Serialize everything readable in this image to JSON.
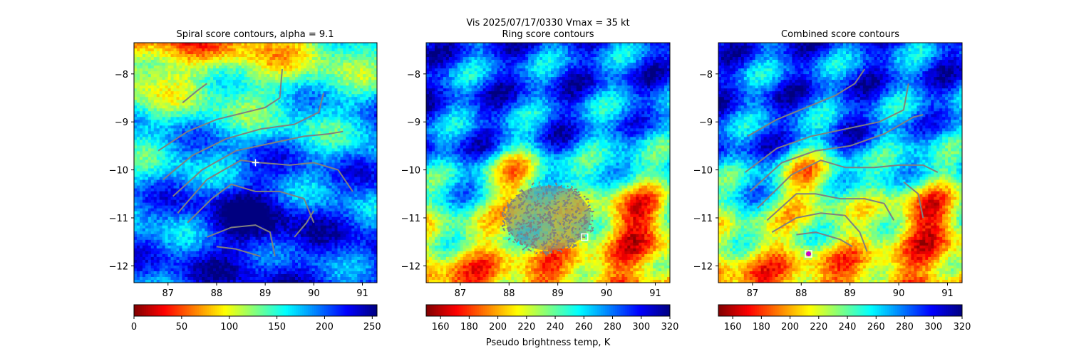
{
  "figure": {
    "suptitle_line1": "Vis  2025/07/17/0330    Vmax = 35 kt",
    "colorbar_label": "Pseudo brightness temp, K"
  },
  "colors": {
    "contour": "#808080",
    "marker": "#ffffff",
    "center_marker": "#cc00cc"
  },
  "chart_data": [
    {
      "type": "heatmap",
      "title": "Spiral score contours, alpha =  9.1",
      "xlim": [
        86.3,
        91.3
      ],
      "ylim": [
        -12.35,
        -7.35
      ],
      "xticks": [
        "87",
        "88",
        "89",
        "90",
        "91"
      ],
      "yticks": [
        "−8",
        "−9",
        "−10",
        "−11",
        "−12"
      ],
      "xtick_values": [
        87,
        88,
        89,
        90,
        91
      ],
      "ytick_values": [
        -8,
        -9,
        -10,
        -11,
        -12
      ],
      "colormap": "jet_r",
      "colorbar": {
        "range": [
          0,
          255
        ],
        "ticks": [
          "0",
          "50",
          "100",
          "150",
          "200",
          "250"
        ],
        "tick_values": [
          0,
          50,
          100,
          150,
          200,
          250
        ]
      },
      "spiral_contours": [
        [
          [
            86.8,
            -9.6
          ],
          [
            87.4,
            -9.2
          ],
          [
            88.0,
            -8.95
          ],
          [
            88.6,
            -8.8
          ],
          [
            89.0,
            -8.7
          ],
          [
            89.3,
            -8.5
          ],
          [
            89.35,
            -7.9
          ]
        ],
        [
          [
            86.9,
            -10.2
          ],
          [
            87.5,
            -9.7
          ],
          [
            88.2,
            -9.35
          ],
          [
            88.9,
            -9.15
          ],
          [
            89.6,
            -9.05
          ],
          [
            90.1,
            -8.8
          ],
          [
            90.2,
            -8.4
          ]
        ],
        [
          [
            87.1,
            -10.55
          ],
          [
            87.7,
            -10.0
          ],
          [
            88.4,
            -9.6
          ],
          [
            89.1,
            -9.45
          ],
          [
            89.8,
            -9.3
          ],
          [
            90.3,
            -9.25
          ],
          [
            90.6,
            -9.2
          ]
        ],
        [
          [
            87.2,
            -10.9
          ],
          [
            87.8,
            -10.2
          ],
          [
            88.5,
            -9.8
          ],
          [
            88.9,
            -9.85
          ],
          [
            89.5,
            -9.9
          ],
          [
            90.0,
            -9.85
          ],
          [
            90.5,
            -10.0
          ],
          [
            90.8,
            -10.45
          ]
        ],
        [
          [
            87.4,
            -11.1
          ],
          [
            87.9,
            -10.6
          ],
          [
            88.3,
            -10.3
          ],
          [
            88.8,
            -10.45
          ],
          [
            89.3,
            -10.45
          ],
          [
            89.8,
            -10.6
          ],
          [
            90.0,
            -11.1
          ]
        ],
        [
          [
            87.8,
            -11.4
          ],
          [
            88.3,
            -11.2
          ],
          [
            88.8,
            -11.15
          ],
          [
            89.1,
            -11.3
          ],
          [
            89.2,
            -11.8
          ]
        ],
        [
          [
            88.0,
            -11.6
          ],
          [
            88.4,
            -11.65
          ],
          [
            88.9,
            -11.8
          ]
        ],
        [
          [
            87.3,
            -8.6
          ],
          [
            87.6,
            -8.35
          ],
          [
            87.8,
            -8.2
          ]
        ],
        [
          [
            89.6,
            -11.4
          ],
          [
            89.85,
            -11.1
          ],
          [
            90.0,
            -10.85
          ]
        ]
      ],
      "markers": [
        {
          "kind": "plus",
          "x": 88.8,
          "y": -9.85
        }
      ]
    },
    {
      "type": "heatmap",
      "title": "Ring score contours",
      "xlim": [
        86.3,
        91.3
      ],
      "ylim": [
        -12.35,
        -7.35
      ],
      "xticks": [
        "87",
        "88",
        "89",
        "90",
        "91"
      ],
      "yticks": [
        "−8",
        "−9",
        "−10",
        "−11",
        "−12"
      ],
      "xtick_values": [
        87,
        88,
        89,
        90,
        91
      ],
      "ytick_values": [
        -8,
        -9,
        -10,
        -11,
        -12
      ],
      "colormap": "jet_r",
      "colorbar": {
        "range": [
          150,
          320
        ],
        "ticks": [
          "160",
          "180",
          "200",
          "220",
          "240",
          "260",
          "280",
          "300",
          "320"
        ],
        "tick_values": [
          160,
          180,
          200,
          220,
          240,
          260,
          280,
          300,
          320
        ]
      },
      "ring_region": {
        "cx": 88.8,
        "cy": -11.0,
        "rx": 0.95,
        "ry": 0.75
      },
      "markers": [
        {
          "kind": "square",
          "x": 89.55,
          "y": -11.4
        }
      ]
    },
    {
      "type": "heatmap",
      "title": "Combined score contours",
      "xlim": [
        86.3,
        91.3
      ],
      "ylim": [
        -12.35,
        -7.35
      ],
      "xticks": [
        "87",
        "88",
        "89",
        "90",
        "91"
      ],
      "yticks": [
        "−8",
        "−9",
        "−10",
        "−11",
        "−12"
      ],
      "xtick_values": [
        87,
        88,
        89,
        90,
        91
      ],
      "ytick_values": [
        -8,
        -9,
        -10,
        -11,
        -12
      ],
      "colormap": "jet_r",
      "colorbar": {
        "range": [
          150,
          320
        ],
        "ticks": [
          "160",
          "180",
          "200",
          "220",
          "240",
          "260",
          "280",
          "300",
          "320"
        ],
        "tick_values": [
          160,
          180,
          200,
          220,
          240,
          260,
          280,
          300,
          320
        ]
      },
      "spiral_contours": [
        [
          [
            86.9,
            -9.3
          ],
          [
            87.5,
            -8.95
          ],
          [
            88.1,
            -8.7
          ],
          [
            88.7,
            -8.45
          ],
          [
            89.1,
            -8.2
          ],
          [
            89.3,
            -7.9
          ]
        ],
        [
          [
            86.85,
            -10.05
          ],
          [
            87.5,
            -9.55
          ],
          [
            88.2,
            -9.3
          ],
          [
            88.9,
            -9.15
          ],
          [
            89.6,
            -9.0
          ],
          [
            90.1,
            -8.75
          ],
          [
            90.2,
            -8.2
          ]
        ],
        [
          [
            86.95,
            -10.45
          ],
          [
            87.6,
            -9.85
          ],
          [
            88.3,
            -9.6
          ],
          [
            89.0,
            -9.5
          ],
          [
            89.7,
            -9.25
          ],
          [
            90.3,
            -8.9
          ],
          [
            90.5,
            -8.85
          ]
        ],
        [
          [
            87.1,
            -10.8
          ],
          [
            87.8,
            -10.1
          ],
          [
            88.4,
            -9.8
          ],
          [
            88.9,
            -9.95
          ],
          [
            89.5,
            -9.95
          ],
          [
            90.0,
            -9.9
          ],
          [
            90.5,
            -9.9
          ],
          [
            90.8,
            -10.05
          ]
        ],
        [
          [
            87.3,
            -11.05
          ],
          [
            87.9,
            -10.5
          ],
          [
            88.3,
            -10.5
          ],
          [
            88.8,
            -10.6
          ],
          [
            89.3,
            -10.6
          ],
          [
            89.7,
            -10.7
          ],
          [
            89.9,
            -11.05
          ]
        ],
        [
          [
            87.4,
            -11.3
          ],
          [
            87.9,
            -11.0
          ],
          [
            88.4,
            -10.9
          ],
          [
            88.9,
            -10.95
          ],
          [
            89.2,
            -11.3
          ],
          [
            89.35,
            -11.7
          ]
        ],
        [
          [
            87.9,
            -11.35
          ],
          [
            88.3,
            -11.3
          ],
          [
            88.8,
            -11.45
          ],
          [
            89.05,
            -11.6
          ]
        ],
        [
          [
            90.1,
            -10.25
          ],
          [
            90.4,
            -10.5
          ],
          [
            90.5,
            -11.0
          ]
        ]
      ],
      "markers": [
        {
          "kind": "circle",
          "x": 88.15,
          "y": -11.75
        }
      ]
    }
  ]
}
